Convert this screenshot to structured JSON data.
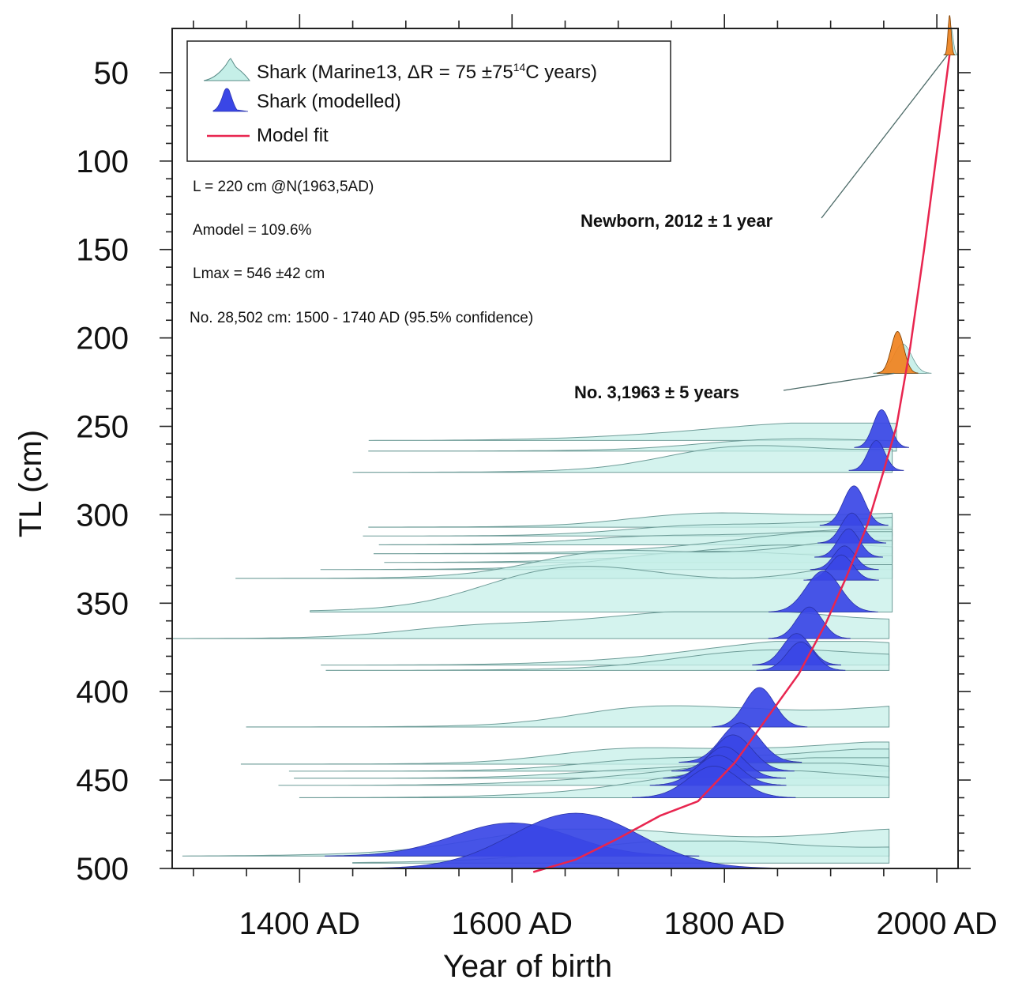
{
  "chart_data": {
    "type": "area",
    "title": "",
    "xlabel": "Year of birth",
    "ylabel": "TL (cm)",
    "xlim": [
      1280,
      2020
    ],
    "ylim": [
      500,
      25
    ],
    "x_ticks": [
      1400,
      1600,
      1800,
      2000
    ],
    "x_tick_labels": [
      "1400 AD",
      "1600 AD",
      "1800 AD",
      "2000 AD"
    ],
    "y_ticks": [
      50,
      100,
      150,
      200,
      250,
      300,
      350,
      400,
      450,
      500
    ],
    "y_tick_labels": [
      "50",
      "100",
      "150",
      "200",
      "250",
      "300",
      "350",
      "400",
      "450",
      "500"
    ],
    "legend": {
      "placement": "top-left",
      "entries": [
        {
          "name": "Shark (Marine13, ΔR = 75 ±75",
          "sup": "14",
          "tail": "C years)",
          "color": "#c5efe8",
          "kind": "marine13"
        },
        {
          "name": "Shark (modelled)",
          "color": "#3a46e6",
          "kind": "modelled"
        },
        {
          "name": "Model fit",
          "color": "#e8254f",
          "kind": "line"
        }
      ]
    },
    "annotations": {
      "params": [
        "L = 220 cm @N(1963,5AD)",
        "Amodel = 109.6%",
        "Lmax = 546 ±42 cm",
        "No. 28,502 cm: 1500 - 1740 AD (95.5% confidence)"
      ],
      "newborn": "Newborn, 2012 ± 1 year",
      "no3": "No. 3,1963 ± 5 years"
    },
    "model_fit": {
      "x": [
        1620,
        1660,
        1700,
        1740,
        1775,
        1810,
        1840,
        1870,
        1895,
        1915,
        1935,
        1950,
        1962,
        1975,
        1988,
        2000,
        2012
      ],
      "y": [
        502,
        495,
        483,
        470,
        462,
        440,
        415,
        390,
        362,
        335,
        305,
        275,
        250,
        205,
        150,
        95,
        40
      ]
    },
    "series_marine13": [
      {
        "tl": 258,
        "start": 1465,
        "end": 1962,
        "rise": 1720,
        "peak": 1950,
        "height": 22
      },
      {
        "tl": 264,
        "start": 1465,
        "end": 1962,
        "rise": 1760,
        "peak": 1955,
        "height": 16
      },
      {
        "tl": 276,
        "start": 1450,
        "end": 1958,
        "rise": 1750,
        "peak": 1945,
        "height": 40
      },
      {
        "tl": 307,
        "start": 1465,
        "end": 1958,
        "rise": 1720,
        "peak": 1930,
        "height": 22
      },
      {
        "tl": 312,
        "start": 1460,
        "end": 1958,
        "rise": 1740,
        "peak": 1930,
        "height": 24
      },
      {
        "tl": 317,
        "start": 1475,
        "end": 1958,
        "rise": 1700,
        "peak": 1925,
        "height": 20
      },
      {
        "tl": 322,
        "start": 1470,
        "end": 1958,
        "rise": 1760,
        "peak": 1925,
        "height": 28
      },
      {
        "tl": 327,
        "start": 1480,
        "end": 1958,
        "rise": 1720,
        "peak": 1920,
        "height": 22
      },
      {
        "tl": 331,
        "start": 1420,
        "end": 1958,
        "rise": 1680,
        "peak": 1920,
        "height": 24
      },
      {
        "tl": 336,
        "start": 1340,
        "end": 1958,
        "rise": 1640,
        "peak": 1900,
        "height": 48
      },
      {
        "tl": 355,
        "start": 1410,
        "end": 1958,
        "rise": 1560,
        "peak": 1890,
        "height": 60
      },
      {
        "tl": 370,
        "start": 1280,
        "end": 1955,
        "rise": 1540,
        "peak": 1880,
        "height": 34
      },
      {
        "tl": 385,
        "start": 1420,
        "end": 1955,
        "rise": 1720,
        "peak": 1860,
        "height": 30
      },
      {
        "tl": 388,
        "start": 1425,
        "end": 1955,
        "rise": 1730,
        "peak": 1870,
        "height": 26
      },
      {
        "tl": 420,
        "start": 1350,
        "end": 1955,
        "rise": 1660,
        "peak": 1830,
        "height": 30
      },
      {
        "tl": 441,
        "start": 1345,
        "end": 1955,
        "rise": 1660,
        "peak": 1820,
        "height": 28
      },
      {
        "tl": 445,
        "start": 1390,
        "end": 1955,
        "rise": 1700,
        "peak": 1810,
        "height": 28
      },
      {
        "tl": 449,
        "start": 1395,
        "end": 1955,
        "rise": 1700,
        "peak": 1800,
        "height": 26
      },
      {
        "tl": 453,
        "start": 1380,
        "end": 1955,
        "rise": 1680,
        "peak": 1790,
        "height": 28
      },
      {
        "tl": 460,
        "start": 1400,
        "end": 1955,
        "rise": 1680,
        "peak": 1790,
        "height": 34
      },
      {
        "tl": 493,
        "start": 1290,
        "end": 1955,
        "rise": 1530,
        "peak": 1650,
        "height": 34
      },
      {
        "tl": 497,
        "start": 1450,
        "end": 1955,
        "rise": 1620,
        "peak": 1700,
        "height": 28
      }
    ],
    "series_modelled": [
      {
        "tl": 262,
        "mu": 1948,
        "sigma": 8,
        "height": 48
      },
      {
        "tl": 275,
        "mu": 1943,
        "sigma": 8,
        "height": 38
      },
      {
        "tl": 306,
        "mu": 1922,
        "sigma": 10,
        "height": 50
      },
      {
        "tl": 316,
        "mu": 1920,
        "sigma": 10,
        "height": 38
      },
      {
        "tl": 324,
        "mu": 1917,
        "sigma": 10,
        "height": 36
      },
      {
        "tl": 331,
        "mu": 1913,
        "sigma": 10,
        "height": 30
      },
      {
        "tl": 337,
        "mu": 1910,
        "sigma": 11,
        "height": 32
      },
      {
        "tl": 355,
        "mu": 1893,
        "sigma": 16,
        "height": 52
      },
      {
        "tl": 370,
        "mu": 1880,
        "sigma": 12,
        "height": 40
      },
      {
        "tl": 385,
        "mu": 1868,
        "sigma": 13,
        "height": 40
      },
      {
        "tl": 388,
        "mu": 1872,
        "sigma": 13,
        "height": 36
      },
      {
        "tl": 420,
        "mu": 1833,
        "sigma": 14,
        "height": 50
      },
      {
        "tl": 440,
        "mu": 1815,
        "sigma": 18,
        "height": 50
      },
      {
        "tl": 445,
        "mu": 1808,
        "sigma": 18,
        "height": 46
      },
      {
        "tl": 449,
        "mu": 1800,
        "sigma": 18,
        "height": 40
      },
      {
        "tl": 453,
        "mu": 1794,
        "sigma": 20,
        "height": 38
      },
      {
        "tl": 460,
        "mu": 1790,
        "sigma": 24,
        "height": 40
      },
      {
        "tl": 493,
        "mu": 1600,
        "sigma": 55,
        "height": 42
      },
      {
        "tl": 500,
        "mu": 1660,
        "sigma": 60,
        "height": 70
      }
    ],
    "series_highlight": [
      {
        "tl": 40,
        "mu": 2012,
        "sigma": 1.5,
        "height": 50,
        "base_start": 2007,
        "base_end": 2018
      },
      {
        "tl": 220,
        "mu": 1963,
        "sigma": 6,
        "height": 53,
        "base_start": 1940,
        "base_end": 1990
      }
    ]
  }
}
